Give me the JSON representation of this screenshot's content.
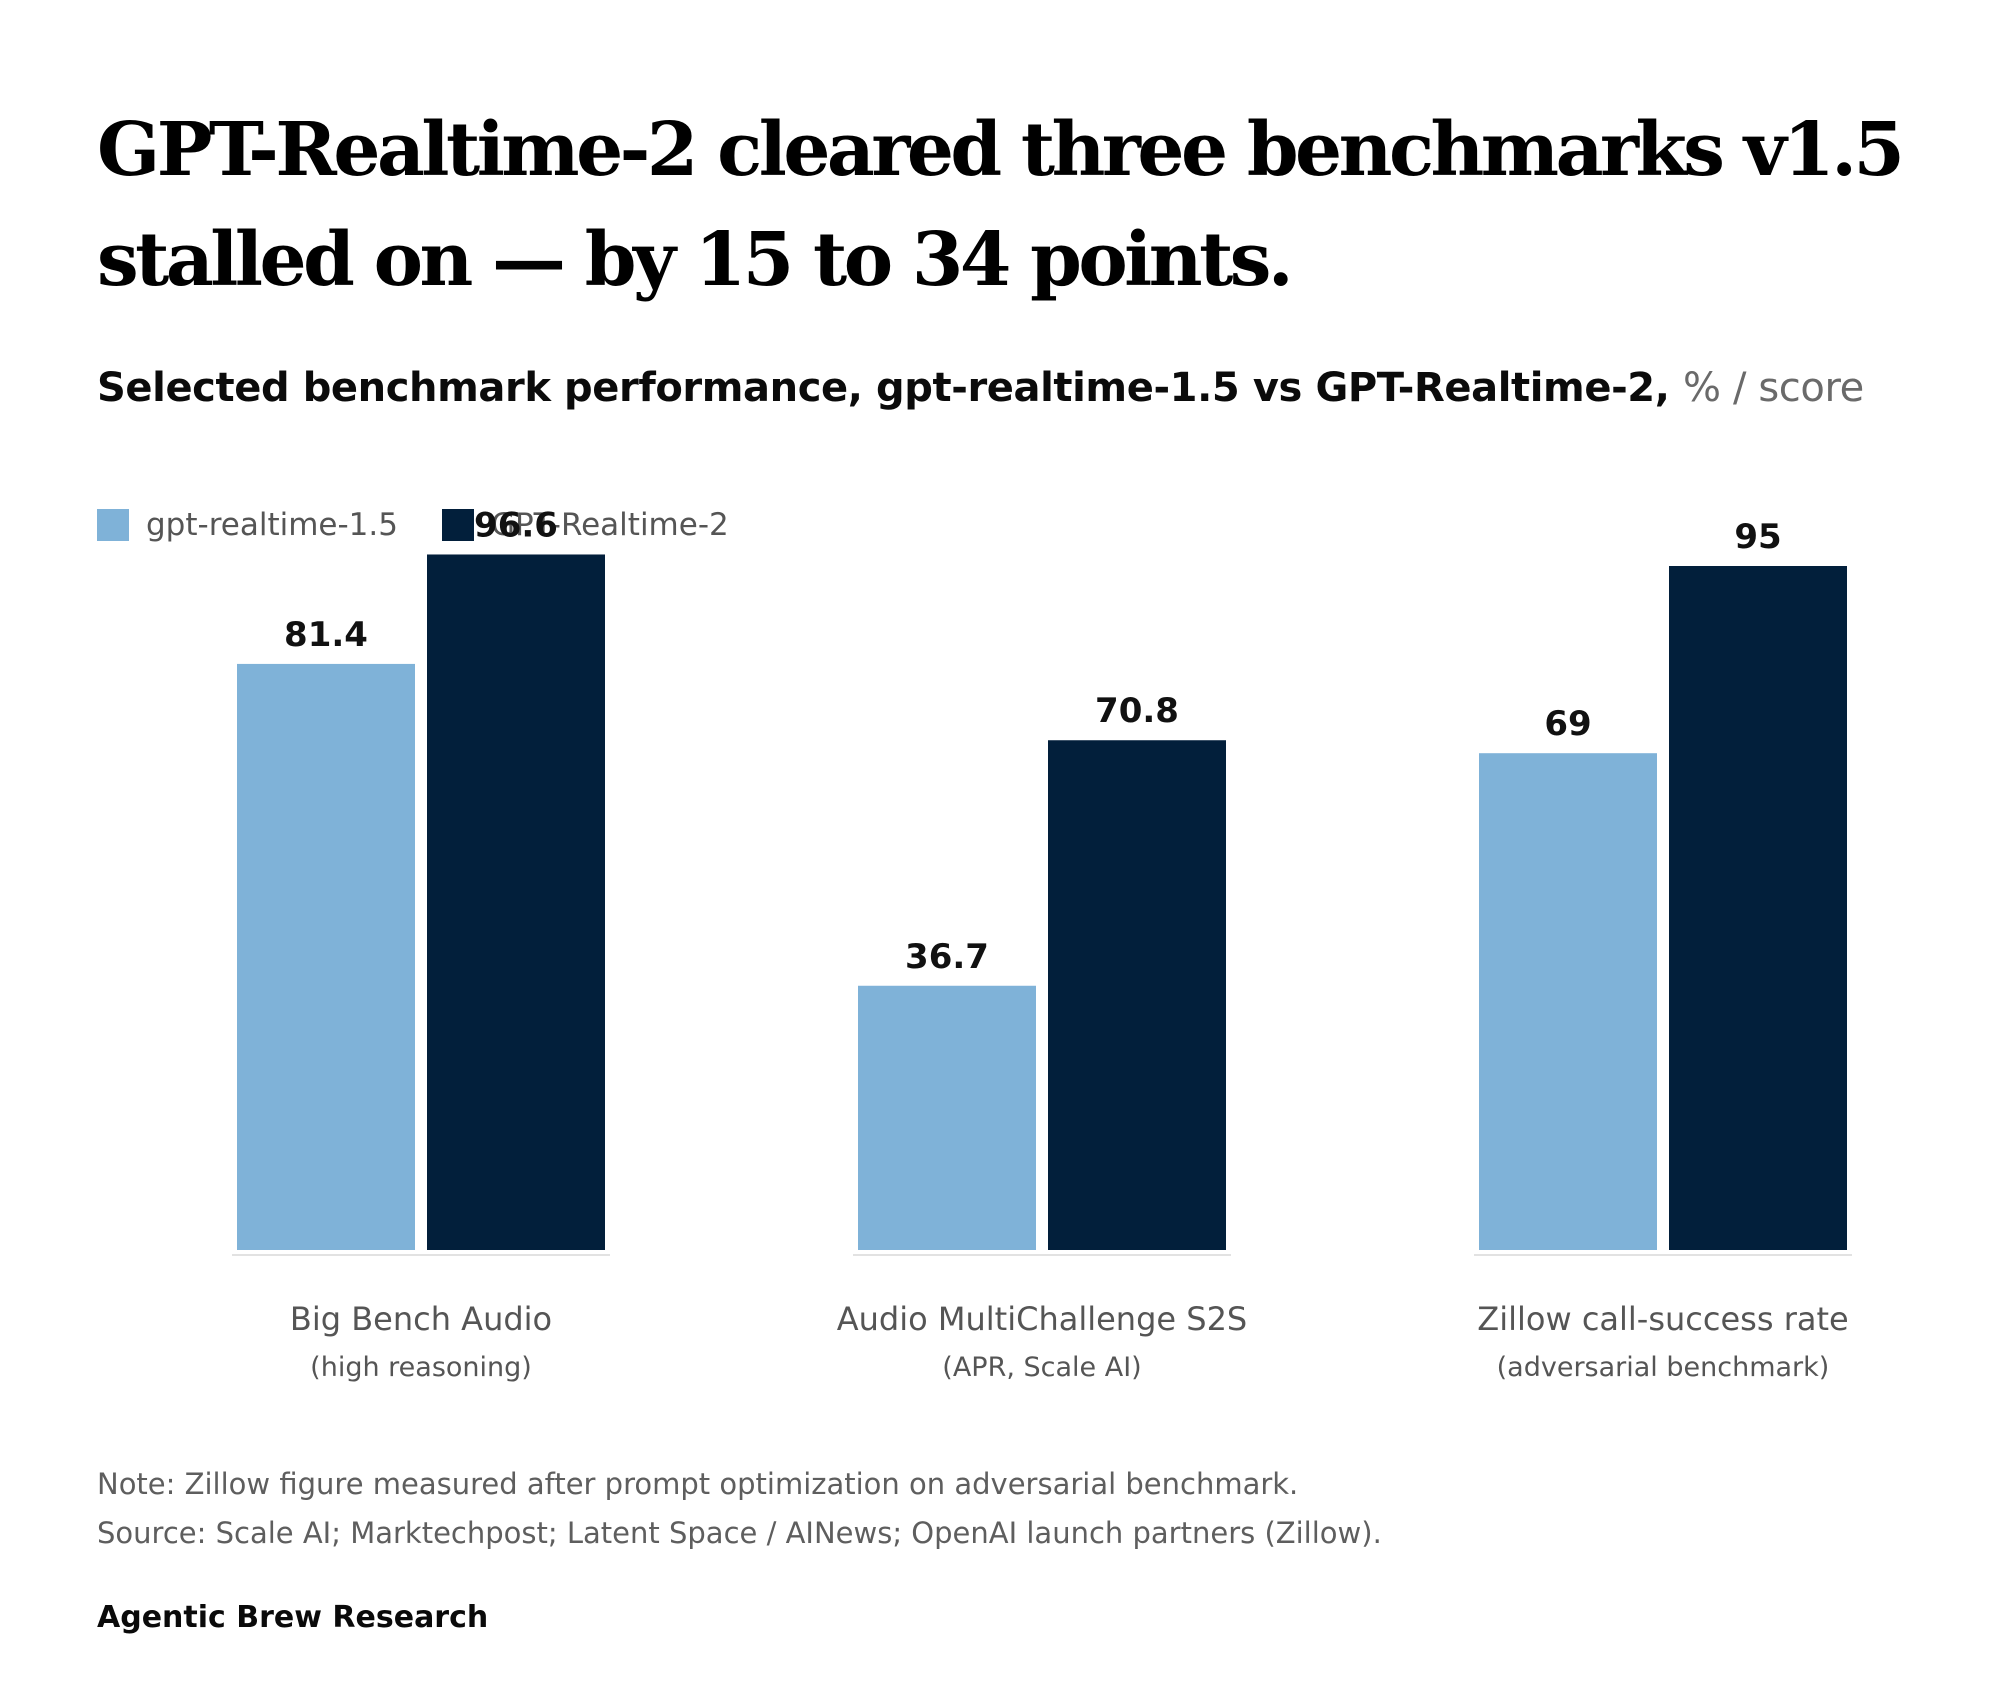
{
  "title": "GPT-Realtime-2 cleared three benchmarks v1.5 stalled on — by 15 to 34 points.",
  "subtitle": {
    "main": "Selected benchmark performance, gpt-realtime-1.5 vs GPT-Realtime-2,",
    "units": "% / score"
  },
  "colors": {
    "series_1": "#7fb2d8",
    "series_2": "#021f3b",
    "baseline": "#e2e2e2"
  },
  "chart_data": {
    "type": "bar",
    "categories": [
      "Big Bench Audio",
      "Audio MultiChallenge S2S",
      "Zillow call-success rate"
    ],
    "category_sublabels": [
      "(high reasoning)",
      "(APR, Scale AI)",
      "(adversarial benchmark)"
    ],
    "series": [
      {
        "name": "gpt-realtime-1.5",
        "values": [
          81.4,
          36.7,
          69
        ]
      },
      {
        "name": "GPT-Realtime-2",
        "values": [
          96.6,
          70.8,
          95
        ]
      }
    ],
    "ylim": [
      0,
      100
    ],
    "grid": false,
    "legend_position": "top-left"
  },
  "notes": {
    "note": "Note: Zillow figure measured after prompt optimization on adversarial benchmark.",
    "source": "Source: Scale AI; Marktechpost; Latent Space / AINews; OpenAI launch partners (Zillow)."
  },
  "brand": "Agentic Brew Research"
}
